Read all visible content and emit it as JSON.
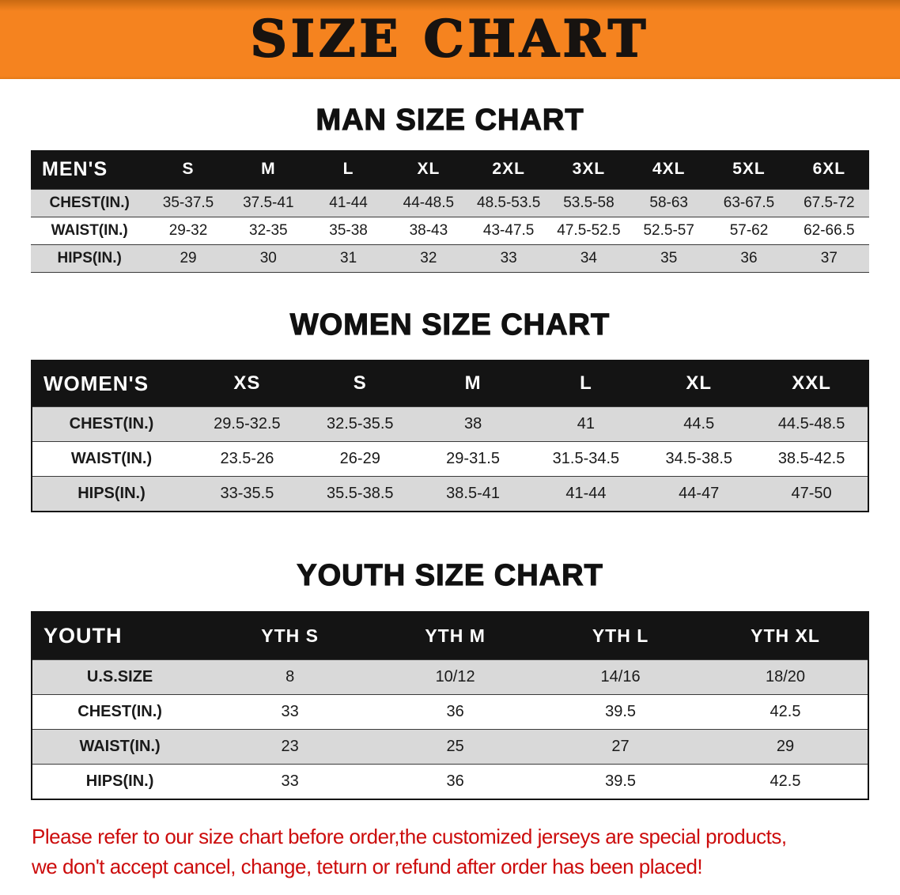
{
  "banner": {
    "title": "SIZE CHART",
    "bg_color": "#F5831F",
    "text_color": "#171310"
  },
  "sections": {
    "men": {
      "heading": "MAN SIZE CHART",
      "table": {
        "header": [
          "MEN'S",
          "S",
          "M",
          "L",
          "XL",
          "2XL",
          "3XL",
          "4XL",
          "5XL",
          "6XL"
        ],
        "rows": [
          [
            "CHEST(IN.)",
            "35-37.5",
            "37.5-41",
            "41-44",
            "44-48.5",
            "48.5-53.5",
            "53.5-58",
            "58-63",
            "63-67.5",
            "67.5-72"
          ],
          [
            "WAIST(IN.)",
            "29-32",
            "32-35",
            "35-38",
            "38-43",
            "43-47.5",
            "47.5-52.5",
            "52.5-57",
            "57-62",
            "62-66.5"
          ],
          [
            "HIPS(IN.)",
            "29",
            "30",
            "31",
            "32",
            "33",
            "34",
            "35",
            "36",
            "37"
          ]
        ]
      }
    },
    "women": {
      "heading": "WOMEN SIZE CHART",
      "table": {
        "header": [
          "WOMEN'S",
          "XS",
          "S",
          "M",
          "L",
          "XL",
          "XXL"
        ],
        "rows": [
          [
            "CHEST(IN.)",
            "29.5-32.5",
            "32.5-35.5",
            "38",
            "41",
            "44.5",
            "44.5-48.5"
          ],
          [
            "WAIST(IN.)",
            "23.5-26",
            "26-29",
            "29-31.5",
            "31.5-34.5",
            "34.5-38.5",
            "38.5-42.5"
          ],
          [
            "HIPS(IN.)",
            "33-35.5",
            "35.5-38.5",
            "38.5-41",
            "41-44",
            "44-47",
            "47-50"
          ]
        ]
      }
    },
    "youth": {
      "heading": "YOUTH SIZE CHART",
      "table": {
        "header": [
          "YOUTH",
          "YTH S",
          "YTH M",
          "YTH L",
          "YTH XL"
        ],
        "rows": [
          [
            "U.S.SIZE",
            "8",
            "10/12",
            "14/16",
            "18/20"
          ],
          [
            "CHEST(IN.)",
            "33",
            "36",
            "39.5",
            "42.5"
          ],
          [
            "WAIST(IN.)",
            "23",
            "25",
            "27",
            "29"
          ],
          [
            "HIPS(IN.)",
            "33",
            "36",
            "39.5",
            "42.5"
          ]
        ]
      }
    }
  },
  "disclaimer": {
    "line1": "Please refer to our size chart before order,the customized jerseys are special products,",
    "line2": "we don't accept cancel, change, teturn or refund after order has been placed!",
    "color": "#CC0C0C"
  }
}
